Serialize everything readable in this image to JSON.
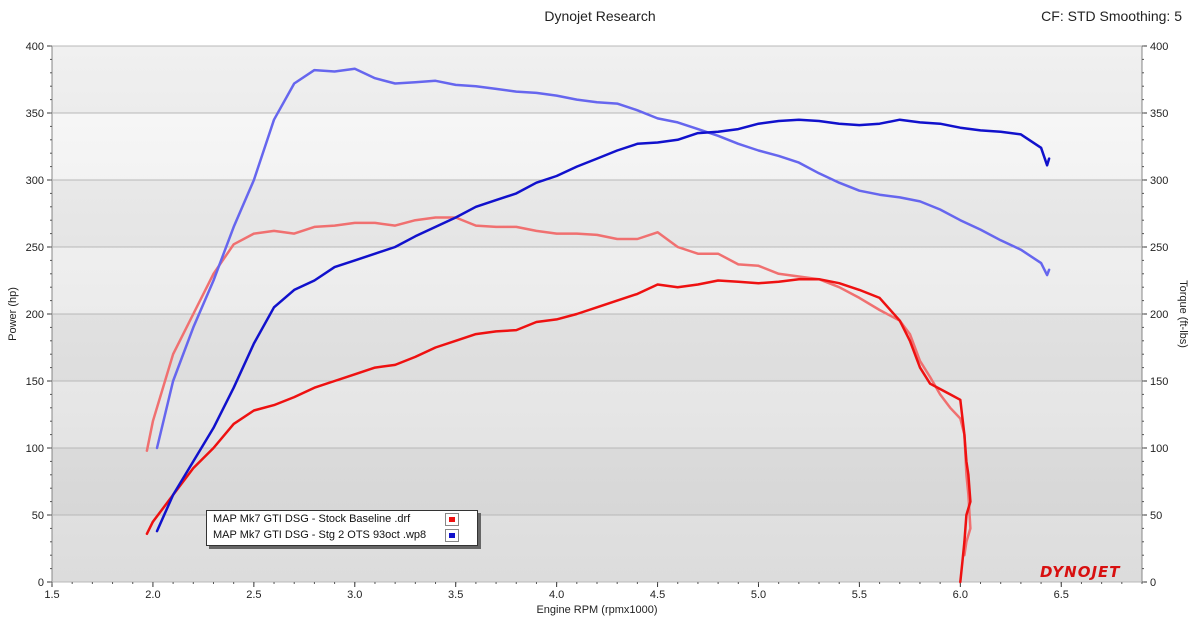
{
  "header": {
    "title": "Dynojet Research",
    "right": "CF: STD Smoothing: 5"
  },
  "logo": "DYNOJET",
  "chart_data": {
    "type": "line",
    "xlabel": "Engine RPM (rpmx1000)",
    "ylabel_left": "Power (hp)",
    "ylabel_right": "Torque (ft-lbs)",
    "xlim": [
      1.5,
      6.9
    ],
    "ylim": [
      0,
      400
    ],
    "x_ticks": [
      "1.5",
      "2.0",
      "2.5",
      "3.0",
      "3.5",
      "4.0",
      "4.5",
      "5.0",
      "5.5",
      "6.0",
      "6.5"
    ],
    "y_ticks": [
      "0",
      "50",
      "100",
      "150",
      "200",
      "250",
      "300",
      "350",
      "400"
    ],
    "grid": true,
    "legend": [
      "MAP Mk7 GTI DSG - Stock Baseline .drf",
      "MAP Mk7 GTI DSG - Stg 2 OTS 93oct .wp8"
    ],
    "colors": {
      "stock_power": "#ee1111",
      "stock_torque": "#f07070",
      "stg2_power": "#1111cc",
      "stg2_torque": "#6666ee"
    },
    "series": [
      {
        "name": "MAP Mk7 GTI DSG - Stock Baseline .drf",
        "measure": "torque",
        "color": "#f07070",
        "x": [
          1.97,
          2.0,
          2.1,
          2.2,
          2.3,
          2.4,
          2.5,
          2.6,
          2.7,
          2.8,
          2.9,
          3.0,
          3.1,
          3.2,
          3.3,
          3.4,
          3.5,
          3.6,
          3.7,
          3.8,
          3.9,
          4.0,
          4.1,
          4.2,
          4.3,
          4.4,
          4.5,
          4.6,
          4.7,
          4.8,
          4.9,
          5.0,
          5.1,
          5.2,
          5.3,
          5.4,
          5.5,
          5.6,
          5.7,
          5.75,
          5.8,
          5.85,
          5.9,
          5.95,
          6.0,
          6.02,
          6.03,
          6.04,
          6.05,
          6.03,
          6.02
        ],
        "y": [
          98,
          120,
          170,
          200,
          230,
          252,
          260,
          262,
          260,
          265,
          266,
          268,
          268,
          266,
          270,
          272,
          272,
          266,
          265,
          265,
          262,
          260,
          260,
          259,
          256,
          256,
          261,
          250,
          245,
          245,
          237,
          236,
          230,
          228,
          226,
          220,
          212,
          203,
          195,
          185,
          165,
          153,
          140,
          130,
          122,
          110,
          80,
          65,
          40,
          30,
          20
        ]
      },
      {
        "name": "MAP Mk7 GTI DSG - Stock Baseline .drf",
        "measure": "power",
        "color": "#ee1111",
        "x": [
          1.97,
          2.0,
          2.1,
          2.2,
          2.3,
          2.4,
          2.5,
          2.6,
          2.7,
          2.8,
          2.9,
          3.0,
          3.1,
          3.2,
          3.3,
          3.4,
          3.5,
          3.6,
          3.7,
          3.8,
          3.9,
          4.0,
          4.1,
          4.2,
          4.3,
          4.4,
          4.5,
          4.6,
          4.7,
          4.8,
          4.9,
          5.0,
          5.1,
          5.2,
          5.3,
          5.4,
          5.5,
          5.6,
          5.7,
          5.75,
          5.8,
          5.85,
          5.9,
          5.95,
          6.0,
          6.02,
          6.03,
          6.04,
          6.05,
          6.03,
          6.02,
          6.01,
          6.0
        ],
        "y": [
          36,
          45,
          65,
          85,
          100,
          118,
          128,
          132,
          138,
          145,
          150,
          155,
          160,
          162,
          168,
          175,
          180,
          185,
          187,
          188,
          194,
          196,
          200,
          205,
          210,
          215,
          222,
          220,
          222,
          225,
          224,
          223,
          224,
          226,
          226,
          223,
          218,
          212,
          195,
          180,
          160,
          148,
          144,
          140,
          136,
          110,
          90,
          80,
          60,
          50,
          30,
          15,
          0
        ]
      },
      {
        "name": "MAP Mk7 GTI DSG - Stg 2 OTS 93oct .wp8",
        "measure": "torque",
        "color": "#6666ee",
        "x": [
          2.02,
          2.1,
          2.2,
          2.3,
          2.4,
          2.5,
          2.6,
          2.7,
          2.8,
          2.9,
          3.0,
          3.1,
          3.2,
          3.3,
          3.4,
          3.5,
          3.6,
          3.7,
          3.8,
          3.9,
          4.0,
          4.1,
          4.2,
          4.3,
          4.4,
          4.5,
          4.6,
          4.7,
          4.8,
          4.9,
          5.0,
          5.1,
          5.2,
          5.3,
          5.4,
          5.5,
          5.6,
          5.7,
          5.8,
          5.9,
          6.0,
          6.1,
          6.2,
          6.3,
          6.4,
          6.43,
          6.44
        ],
        "y": [
          100,
          150,
          190,
          225,
          265,
          300,
          345,
          372,
          382,
          381,
          383,
          376,
          372,
          373,
          374,
          371,
          370,
          368,
          366,
          365,
          363,
          360,
          358,
          357,
          352,
          346,
          343,
          338,
          333,
          327,
          322,
          318,
          313,
          305,
          298,
          292,
          289,
          287,
          284,
          278,
          270,
          263,
          255,
          248,
          238,
          229,
          233
        ]
      },
      {
        "name": "MAP Mk7 GTI DSG - Stg 2 OTS 93oct .wp8",
        "measure": "power",
        "color": "#1111cc",
        "x": [
          2.02,
          2.1,
          2.2,
          2.3,
          2.4,
          2.5,
          2.6,
          2.7,
          2.8,
          2.9,
          3.0,
          3.1,
          3.2,
          3.3,
          3.4,
          3.5,
          3.6,
          3.7,
          3.8,
          3.9,
          4.0,
          4.1,
          4.2,
          4.3,
          4.4,
          4.5,
          4.6,
          4.7,
          4.8,
          4.9,
          5.0,
          5.1,
          5.2,
          5.3,
          5.4,
          5.5,
          5.6,
          5.7,
          5.8,
          5.9,
          6.0,
          6.1,
          6.2,
          6.3,
          6.4,
          6.43,
          6.44
        ],
        "y": [
          38,
          65,
          90,
          115,
          145,
          178,
          205,
          218,
          225,
          235,
          240,
          245,
          250,
          258,
          265,
          272,
          280,
          285,
          290,
          298,
          303,
          310,
          316,
          322,
          327,
          328,
          330,
          335,
          336,
          338,
          342,
          344,
          345,
          344,
          342,
          341,
          342,
          345,
          343,
          342,
          339,
          337,
          336,
          334,
          324,
          311,
          316
        ]
      }
    ]
  }
}
